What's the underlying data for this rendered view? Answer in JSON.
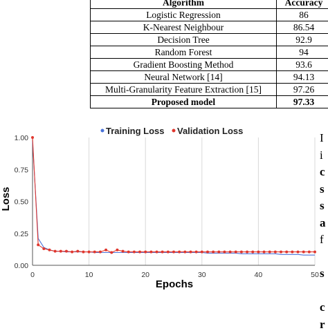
{
  "table": {
    "headers": [
      "Algorithm",
      "Accuracy"
    ],
    "rows": [
      {
        "algorithm": "Logistic Regression",
        "accuracy": "86"
      },
      {
        "algorithm": "K-Nearest Neighbour",
        "accuracy": "86.54"
      },
      {
        "algorithm": "Decision Tree",
        "accuracy": "92.9"
      },
      {
        "algorithm": "Random Forest",
        "accuracy": "94"
      },
      {
        "algorithm": "Gradient Boosting Method",
        "accuracy": "93.6"
      },
      {
        "algorithm": "Neural Network [14]",
        "accuracy": "94.13"
      },
      {
        "algorithm": "Multi-Granularity Feature Extraction [15]",
        "accuracy": "97.26"
      },
      {
        "algorithm": "Proposed model",
        "accuracy": "97.33"
      }
    ]
  },
  "side_text": [
    "I",
    "i",
    "c",
    "s",
    "s",
    "a",
    "f",
    "",
    "s",
    "",
    "c",
    "r"
  ],
  "chart_data": {
    "type": "line",
    "title": "",
    "xlabel": "Epochs",
    "ylabel": "Loss",
    "xlim": [
      0,
      50
    ],
    "ylim": [
      0,
      1
    ],
    "xticks": [
      0,
      10,
      20,
      30,
      40,
      50
    ],
    "yticks": [
      "0.00",
      "0.25",
      "0.50",
      "0.75",
      "1.00"
    ],
    "grid": "vertical",
    "legend_position": "top",
    "series": [
      {
        "name": "Training Loss",
        "color": "#4a73d9",
        "marker": "none",
        "x": [
          0,
          1,
          2,
          3,
          4,
          5,
          6,
          7,
          8,
          9,
          10,
          11,
          12,
          13,
          14,
          15,
          16,
          17,
          18,
          19,
          20,
          21,
          22,
          23,
          24,
          25,
          26,
          27,
          28,
          29,
          30,
          31,
          32,
          33,
          34,
          35,
          36,
          37,
          38,
          39,
          40,
          41,
          42,
          43,
          44,
          45,
          46,
          47,
          48,
          49,
          50
        ],
        "y": [
          0.97,
          0.21,
          0.14,
          0.12,
          0.11,
          0.11,
          0.105,
          0.105,
          0.105,
          0.105,
          0.105,
          0.1,
          0.1,
          0.1,
          0.1,
          0.1,
          0.1,
          0.1,
          0.1,
          0.1,
          0.1,
          0.1,
          0.1,
          0.1,
          0.1,
          0.1,
          0.1,
          0.1,
          0.1,
          0.1,
          0.1,
          0.095,
          0.095,
          0.095,
          0.095,
          0.095,
          0.095,
          0.09,
          0.09,
          0.09,
          0.09,
          0.09,
          0.09,
          0.09,
          0.085,
          0.085,
          0.085,
          0.085,
          0.08,
          0.08,
          0.08
        ]
      },
      {
        "name": "Validation Loss",
        "color": "#e0372e",
        "marker": "circle",
        "x": [
          0,
          1,
          2,
          3,
          4,
          5,
          6,
          7,
          8,
          9,
          10,
          11,
          12,
          13,
          14,
          15,
          16,
          17,
          18,
          19,
          20,
          21,
          22,
          23,
          24,
          25,
          26,
          27,
          28,
          29,
          30,
          31,
          32,
          33,
          34,
          35,
          36,
          37,
          38,
          39,
          40,
          41,
          42,
          43,
          44,
          45,
          46,
          47,
          48,
          49,
          50
        ],
        "y": [
          1.0,
          0.16,
          0.13,
          0.12,
          0.11,
          0.11,
          0.11,
          0.105,
          0.11,
          0.105,
          0.105,
          0.105,
          0.105,
          0.12,
          0.1,
          0.12,
          0.11,
          0.105,
          0.105,
          0.105,
          0.105,
          0.105,
          0.105,
          0.105,
          0.105,
          0.105,
          0.105,
          0.105,
          0.105,
          0.105,
          0.105,
          0.105,
          0.105,
          0.105,
          0.105,
          0.105,
          0.105,
          0.105,
          0.105,
          0.105,
          0.105,
          0.105,
          0.105,
          0.105,
          0.105,
          0.105,
          0.105,
          0.105,
          0.105,
          0.105,
          0.105
        ]
      }
    ]
  }
}
